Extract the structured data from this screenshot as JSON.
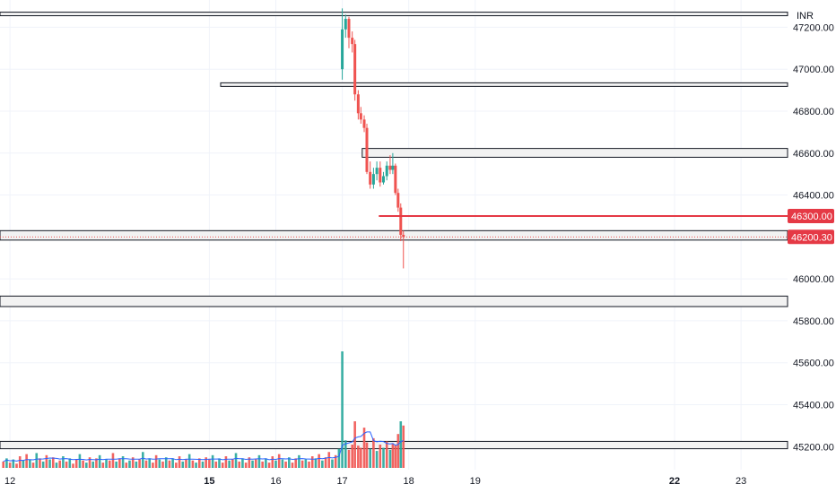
{
  "currency": "INR",
  "colors": {
    "bull": "#26a69a",
    "bear": "#ef5350",
    "level_line": "#e53945",
    "grid": "#f0f3fa",
    "zone_fill": "#f2f2f2",
    "zone_stroke": "#131722",
    "ma": "#2962ff",
    "tag_bg": "#e53945"
  },
  "price_tags": [
    {
      "value": "46300.00",
      "y": 46300
    },
    {
      "value": "46200.30",
      "y": 46200.3
    }
  ],
  "chart_data": {
    "type": "candlestick",
    "y_axis": {
      "ticks": [
        47200,
        47000,
        46800,
        46600,
        46400,
        46200,
        46000,
        45800,
        45600,
        45400,
        45200
      ],
      "tick_labels": [
        "47200.00",
        "47000.00",
        "46800.00",
        "46600.00",
        "46400.00",
        "46200.00",
        "46000.00",
        "45800.00",
        "45600.00",
        "45400.00",
        "45200.00"
      ],
      "range": [
        45090,
        47330
      ]
    },
    "x_axis": {
      "range": [
        11.85,
        23.7
      ],
      "ticks": [
        {
          "x": 12,
          "label": "12",
          "bold": false
        },
        {
          "x": 15,
          "label": "15",
          "bold": true
        },
        {
          "x": 16,
          "label": "16",
          "bold": false
        },
        {
          "x": 17,
          "label": "17",
          "bold": false
        },
        {
          "x": 18,
          "label": "18",
          "bold": false
        },
        {
          "x": 19,
          "label": "19",
          "bold": false
        },
        {
          "x": 22,
          "label": "22",
          "bold": true
        },
        {
          "x": 23,
          "label": "23",
          "bold": false
        }
      ]
    },
    "zones": [
      {
        "from": 47272,
        "to": 47255,
        "x_start": 11.85
      },
      {
        "from": 46935,
        "to": 46918,
        "x_start": 15.17
      },
      {
        "from": 46622,
        "to": 46580,
        "x_start": 17.3
      },
      {
        "from": 46230,
        "to": 46185,
        "x_start": 11.85
      },
      {
        "from": 45918,
        "to": 45868,
        "x_start": 11.85
      },
      {
        "from": 45225,
        "to": 45190,
        "x_start": 11.85
      }
    ],
    "level_lines": [
      {
        "y": 46300,
        "x_start": 17.55
      }
    ],
    "candles": [
      {
        "x": 17.0,
        "o": 47000,
        "h": 47290,
        "l": 46950,
        "c": 47190
      },
      {
        "x": 17.05,
        "o": 47190,
        "h": 47260,
        "l": 47150,
        "c": 47240
      },
      {
        "x": 17.1,
        "o": 47240,
        "h": 47250,
        "l": 47100,
        "c": 47150
      },
      {
        "x": 17.15,
        "o": 47150,
        "h": 47180,
        "l": 47080,
        "c": 47120
      },
      {
        "x": 17.19,
        "o": 47120,
        "h": 47140,
        "l": 46850,
        "c": 46880
      },
      {
        "x": 17.24,
        "o": 46880,
        "h": 46900,
        "l": 46760,
        "c": 46790
      },
      {
        "x": 17.28,
        "o": 46790,
        "h": 46820,
        "l": 46740,
        "c": 46760
      },
      {
        "x": 17.33,
        "o": 46760,
        "h": 46780,
        "l": 46700,
        "c": 46720
      },
      {
        "x": 17.37,
        "o": 46720,
        "h": 46740,
        "l": 46500,
        "c": 46510
      },
      {
        "x": 17.42,
        "o": 46510,
        "h": 46560,
        "l": 46430,
        "c": 46450
      },
      {
        "x": 17.47,
        "o": 46450,
        "h": 46530,
        "l": 46430,
        "c": 46500
      },
      {
        "x": 17.52,
        "o": 46500,
        "h": 46560,
        "l": 46470,
        "c": 46530
      },
      {
        "x": 17.57,
        "o": 46530,
        "h": 46560,
        "l": 46440,
        "c": 46460
      },
      {
        "x": 17.62,
        "o": 46460,
        "h": 46510,
        "l": 46450,
        "c": 46490
      },
      {
        "x": 17.67,
        "o": 46490,
        "h": 46560,
        "l": 46470,
        "c": 46540
      },
      {
        "x": 17.72,
        "o": 46540,
        "h": 46590,
        "l": 46500,
        "c": 46520
      },
      {
        "x": 17.76,
        "o": 46520,
        "h": 46600,
        "l": 46500,
        "c": 46540
      },
      {
        "x": 17.8,
        "o": 46540,
        "h": 46550,
        "l": 46400,
        "c": 46410
      },
      {
        "x": 17.84,
        "o": 46410,
        "h": 46430,
        "l": 46320,
        "c": 46340
      },
      {
        "x": 17.88,
        "o": 46340,
        "h": 46360,
        "l": 46180,
        "c": 46210
      },
      {
        "x": 17.92,
        "o": 46210,
        "h": 46230,
        "l": 46050,
        "c": 46200
      }
    ],
    "volume": [
      {
        "x": 11.9,
        "v": 6,
        "up": false
      },
      {
        "x": 11.95,
        "v": 9,
        "up": true
      },
      {
        "x": 12.0,
        "v": 5,
        "up": false
      },
      {
        "x": 12.05,
        "v": 8,
        "up": true
      },
      {
        "x": 12.1,
        "v": 4,
        "up": false
      },
      {
        "x": 12.15,
        "v": 11,
        "up": false
      },
      {
        "x": 12.2,
        "v": 7,
        "up": true
      },
      {
        "x": 12.25,
        "v": 13,
        "up": false
      },
      {
        "x": 12.3,
        "v": 8,
        "up": true
      },
      {
        "x": 12.35,
        "v": 5,
        "up": false
      },
      {
        "x": 12.4,
        "v": 14,
        "up": true
      },
      {
        "x": 12.45,
        "v": 9,
        "up": false
      },
      {
        "x": 12.5,
        "v": 6,
        "up": true
      },
      {
        "x": 12.55,
        "v": 12,
        "up": false
      },
      {
        "x": 12.6,
        "v": 8,
        "up": true
      },
      {
        "x": 12.65,
        "v": 10,
        "up": false
      },
      {
        "x": 12.7,
        "v": 5,
        "up": true
      },
      {
        "x": 12.75,
        "v": 7,
        "up": false
      },
      {
        "x": 12.8,
        "v": 11,
        "up": true
      },
      {
        "x": 12.85,
        "v": 6,
        "up": false
      },
      {
        "x": 12.9,
        "v": 9,
        "up": true
      },
      {
        "x": 12.95,
        "v": 4,
        "up": false
      },
      {
        "x": 13.0,
        "v": 8,
        "up": false
      },
      {
        "x": 13.05,
        "v": 13,
        "up": true
      },
      {
        "x": 13.1,
        "v": 7,
        "up": false
      },
      {
        "x": 13.15,
        "v": 5,
        "up": true
      },
      {
        "x": 13.2,
        "v": 10,
        "up": false
      },
      {
        "x": 13.25,
        "v": 6,
        "up": true
      },
      {
        "x": 13.3,
        "v": 9,
        "up": false
      },
      {
        "x": 13.35,
        "v": 12,
        "up": true
      },
      {
        "x": 13.4,
        "v": 5,
        "up": false
      },
      {
        "x": 13.45,
        "v": 8,
        "up": true
      },
      {
        "x": 13.5,
        "v": 7,
        "up": false
      },
      {
        "x": 13.55,
        "v": 14,
        "up": false
      },
      {
        "x": 13.6,
        "v": 6,
        "up": true
      },
      {
        "x": 13.65,
        "v": 9,
        "up": false
      },
      {
        "x": 13.7,
        "v": 11,
        "up": true
      },
      {
        "x": 13.75,
        "v": 5,
        "up": false
      },
      {
        "x": 13.8,
        "v": 7,
        "up": true
      },
      {
        "x": 13.85,
        "v": 10,
        "up": false
      },
      {
        "x": 13.9,
        "v": 6,
        "up": true
      },
      {
        "x": 13.95,
        "v": 8,
        "up": false
      },
      {
        "x": 14.0,
        "v": 15,
        "up": true
      },
      {
        "x": 14.05,
        "v": 7,
        "up": false
      },
      {
        "x": 14.1,
        "v": 9,
        "up": true
      },
      {
        "x": 14.15,
        "v": 5,
        "up": false
      },
      {
        "x": 14.2,
        "v": 12,
        "up": false
      },
      {
        "x": 14.25,
        "v": 8,
        "up": true
      },
      {
        "x": 14.3,
        "v": 6,
        "up": false
      },
      {
        "x": 14.35,
        "v": 10,
        "up": true
      },
      {
        "x": 14.4,
        "v": 7,
        "up": false
      },
      {
        "x": 14.45,
        "v": 9,
        "up": true
      },
      {
        "x": 14.5,
        "v": 5,
        "up": false
      },
      {
        "x": 14.55,
        "v": 11,
        "up": false
      },
      {
        "x": 14.6,
        "v": 6,
        "up": true
      },
      {
        "x": 14.65,
        "v": 8,
        "up": false
      },
      {
        "x": 14.7,
        "v": 13,
        "up": true
      },
      {
        "x": 14.75,
        "v": 7,
        "up": false
      },
      {
        "x": 14.8,
        "v": 5,
        "up": true
      },
      {
        "x": 14.85,
        "v": 9,
        "up": false
      },
      {
        "x": 14.9,
        "v": 6,
        "up": true
      },
      {
        "x": 14.95,
        "v": 10,
        "up": false
      },
      {
        "x": 15.0,
        "v": 8,
        "up": false
      },
      {
        "x": 15.05,
        "v": 12,
        "up": true
      },
      {
        "x": 15.1,
        "v": 6,
        "up": false
      },
      {
        "x": 15.15,
        "v": 9,
        "up": true
      },
      {
        "x": 15.2,
        "v": 5,
        "up": false
      },
      {
        "x": 15.25,
        "v": 11,
        "up": false
      },
      {
        "x": 15.3,
        "v": 7,
        "up": true
      },
      {
        "x": 15.35,
        "v": 8,
        "up": false
      },
      {
        "x": 15.4,
        "v": 14,
        "up": true
      },
      {
        "x": 15.45,
        "v": 6,
        "up": false
      },
      {
        "x": 15.5,
        "v": 9,
        "up": true
      },
      {
        "x": 15.55,
        "v": 5,
        "up": false
      },
      {
        "x": 15.6,
        "v": 10,
        "up": false
      },
      {
        "x": 15.65,
        "v": 7,
        "up": true
      },
      {
        "x": 15.7,
        "v": 8,
        "up": false
      },
      {
        "x": 15.75,
        "v": 12,
        "up": true
      },
      {
        "x": 15.8,
        "v": 6,
        "up": false
      },
      {
        "x": 15.85,
        "v": 9,
        "up": true
      },
      {
        "x": 15.9,
        "v": 5,
        "up": false
      },
      {
        "x": 15.95,
        "v": 11,
        "up": false
      },
      {
        "x": 16.0,
        "v": 7,
        "up": true
      },
      {
        "x": 16.05,
        "v": 13,
        "up": false
      },
      {
        "x": 16.1,
        "v": 8,
        "up": true
      },
      {
        "x": 16.15,
        "v": 6,
        "up": false
      },
      {
        "x": 16.2,
        "v": 10,
        "up": true
      },
      {
        "x": 16.25,
        "v": 5,
        "up": false
      },
      {
        "x": 16.3,
        "v": 9,
        "up": false
      },
      {
        "x": 16.35,
        "v": 12,
        "up": true
      },
      {
        "x": 16.4,
        "v": 7,
        "up": false
      },
      {
        "x": 16.45,
        "v": 8,
        "up": true
      },
      {
        "x": 16.5,
        "v": 6,
        "up": false
      },
      {
        "x": 16.55,
        "v": 11,
        "up": false
      },
      {
        "x": 16.6,
        "v": 9,
        "up": true
      },
      {
        "x": 16.65,
        "v": 13,
        "up": false
      },
      {
        "x": 16.7,
        "v": 7,
        "up": true
      },
      {
        "x": 16.75,
        "v": 10,
        "up": false
      },
      {
        "x": 16.8,
        "v": 15,
        "up": false
      },
      {
        "x": 16.85,
        "v": 8,
        "up": true
      },
      {
        "x": 16.9,
        "v": 12,
        "up": false
      },
      {
        "x": 16.95,
        "v": 18,
        "up": true
      },
      {
        "x": 17.0,
        "v": 110,
        "up": true
      },
      {
        "x": 17.05,
        "v": 26,
        "up": true
      },
      {
        "x": 17.1,
        "v": 17,
        "up": false
      },
      {
        "x": 17.15,
        "v": 22,
        "up": false
      },
      {
        "x": 17.19,
        "v": 44,
        "up": false
      },
      {
        "x": 17.24,
        "v": 21,
        "up": false
      },
      {
        "x": 17.28,
        "v": 19,
        "up": false
      },
      {
        "x": 17.33,
        "v": 38,
        "up": false
      },
      {
        "x": 17.37,
        "v": 24,
        "up": false
      },
      {
        "x": 17.42,
        "v": 18,
        "up": true
      },
      {
        "x": 17.47,
        "v": 28,
        "up": false
      },
      {
        "x": 17.52,
        "v": 16,
        "up": true
      },
      {
        "x": 17.57,
        "v": 22,
        "up": false
      },
      {
        "x": 17.62,
        "v": 19,
        "up": true
      },
      {
        "x": 17.67,
        "v": 25,
        "up": false
      },
      {
        "x": 17.72,
        "v": 17,
        "up": true
      },
      {
        "x": 17.76,
        "v": 23,
        "up": false
      },
      {
        "x": 17.8,
        "v": 21,
        "up": false
      },
      {
        "x": 17.84,
        "v": 32,
        "up": false
      },
      {
        "x": 17.88,
        "v": 44,
        "up": true
      },
      {
        "x": 17.92,
        "v": 40,
        "up": false
      }
    ]
  }
}
